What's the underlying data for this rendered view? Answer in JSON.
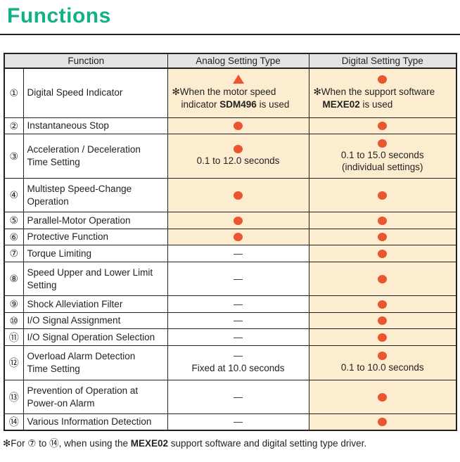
{
  "page": {
    "title": "Functions"
  },
  "colors": {
    "accent_green": "#12b287",
    "symbol_orange": "#ea5532",
    "cell_cream": "#fcedd0",
    "header_gray": "#e4e4e5",
    "text": "#231f20"
  },
  "icons": {
    "dot": "filled-circle",
    "triangle": "filled-triangle",
    "dash": "—"
  },
  "table": {
    "headers": [
      "Function",
      "Analog Setting Type",
      "Digital Setting Type"
    ],
    "rows": [
      {
        "num": "①",
        "function": "Digital Speed Indicator",
        "analog": {
          "symbol": "triangle",
          "shaded": true,
          "note_prefix": "✻When the motor speed\nindicator ",
          "note_bold": "SDM496",
          "note_suffix": " is used"
        },
        "digital": {
          "symbol": "dot",
          "shaded": true,
          "note_prefix": "✻When the support software\n",
          "note_bold": "MEXE02",
          "note_suffix": " is used"
        }
      },
      {
        "num": "②",
        "function": "Instantaneous Stop",
        "analog": {
          "symbol": "dot",
          "shaded": true
        },
        "digital": {
          "symbol": "dot",
          "shaded": true
        }
      },
      {
        "num": "③",
        "function": "Acceleration / Deceleration\nTime Setting",
        "analog": {
          "symbol": "dot",
          "shaded": true,
          "text": "0.1 to 12.0 seconds"
        },
        "digital": {
          "symbol": "dot",
          "shaded": true,
          "text": "0.1 to 15.0 seconds\n(individual settings)"
        }
      },
      {
        "num": "④",
        "function": "Multistep Speed-Change\nOperation",
        "analog": {
          "symbol": "dot",
          "shaded": true
        },
        "digital": {
          "symbol": "dot",
          "shaded": true
        }
      },
      {
        "num": "⑤",
        "function": "Parallel-Motor Operation",
        "analog": {
          "symbol": "dot",
          "shaded": true
        },
        "digital": {
          "symbol": "dot",
          "shaded": true
        }
      },
      {
        "num": "⑥",
        "function": "Protective Function",
        "analog": {
          "symbol": "dot",
          "shaded": true
        },
        "digital": {
          "symbol": "dot",
          "shaded": true
        }
      },
      {
        "num": "⑦",
        "function": "Torque Limiting",
        "analog": {
          "symbol": "dash",
          "shaded": false
        },
        "digital": {
          "symbol": "dot",
          "shaded": true
        }
      },
      {
        "num": "⑧",
        "function": "Speed Upper and Lower Limit\nSetting",
        "analog": {
          "symbol": "dash",
          "shaded": false
        },
        "digital": {
          "symbol": "dot",
          "shaded": true
        }
      },
      {
        "num": "⑨",
        "function": "Shock Alleviation Filter",
        "analog": {
          "symbol": "dash",
          "shaded": false
        },
        "digital": {
          "symbol": "dot",
          "shaded": true
        }
      },
      {
        "num": "⑩",
        "function": "I/O Signal Assignment",
        "analog": {
          "symbol": "dash",
          "shaded": false
        },
        "digital": {
          "symbol": "dot",
          "shaded": true
        }
      },
      {
        "num": "⑪",
        "function": "I/O Signal Operation Selection",
        "analog": {
          "symbol": "dash",
          "shaded": false
        },
        "digital": {
          "symbol": "dot",
          "shaded": true
        }
      },
      {
        "num": "⑫",
        "function": "Overload Alarm Detection\nTime Setting",
        "analog": {
          "symbol": "dash",
          "shaded": false,
          "text": "Fixed at 10.0 seconds"
        },
        "digital": {
          "symbol": "dot",
          "shaded": true,
          "text": "0.1 to 10.0 seconds"
        }
      },
      {
        "num": "⑬",
        "function": "Prevention of Operation at\nPower-on Alarm",
        "analog": {
          "symbol": "dash",
          "shaded": false
        },
        "digital": {
          "symbol": "dot",
          "shaded": true
        }
      },
      {
        "num": "⑭",
        "function": "Various Information Detection",
        "analog": {
          "symbol": "dash",
          "shaded": false
        },
        "digital": {
          "symbol": "dot",
          "shaded": true
        }
      }
    ]
  },
  "footnote": {
    "prefix": "✻For ⑦ to ⑭, when using the ",
    "bold": "MEXE02",
    "suffix": " support software and digital setting type driver."
  }
}
